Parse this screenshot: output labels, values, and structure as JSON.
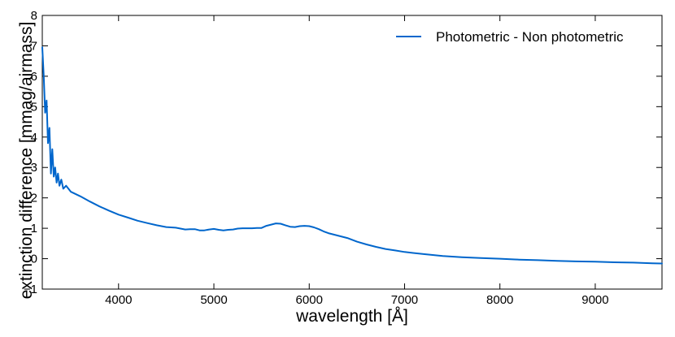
{
  "chart_data": {
    "type": "line",
    "title": "",
    "xlabel": "wavelength [Å]",
    "ylabel": "extinction difference [mmag/airmass]",
    "xlim": [
      3200,
      9700
    ],
    "ylim": [
      -1,
      8
    ],
    "x_ticks": [
      4000,
      5000,
      6000,
      7000,
      8000,
      9000
    ],
    "y_ticks": [
      -1,
      0,
      1,
      2,
      3,
      4,
      5,
      6,
      7,
      8
    ],
    "grid": false,
    "legend_position": "top-right",
    "series": [
      {
        "name": "Photometric - Non photometric",
        "color": "#0066cc",
        "x": [
          3200,
          3215,
          3230,
          3245,
          3260,
          3275,
          3290,
          3305,
          3320,
          3335,
          3350,
          3365,
          3380,
          3400,
          3420,
          3450,
          3500,
          3600,
          3700,
          3800,
          3900,
          4000,
          4100,
          4200,
          4300,
          4400,
          4500,
          4600,
          4700,
          4750,
          4800,
          4850,
          4900,
          4950,
          5000,
          5050,
          5100,
          5150,
          5200,
          5250,
          5300,
          5350,
          5400,
          5450,
          5500,
          5550,
          5600,
          5650,
          5700,
          5750,
          5800,
          5850,
          5900,
          5950,
          6000,
          6050,
          6100,
          6150,
          6200,
          6300,
          6400,
          6450,
          6500,
          6600,
          6700,
          6800,
          6900,
          7000,
          7200,
          7400,
          7600,
          7800,
          8000,
          8200,
          8400,
          8600,
          8800,
          9000,
          9200,
          9400,
          9600,
          9700
        ],
        "y": [
          6.95,
          6.0,
          4.8,
          5.2,
          3.8,
          4.3,
          2.8,
          3.6,
          2.7,
          3.0,
          2.5,
          2.8,
          2.4,
          2.6,
          2.3,
          2.4,
          2.2,
          2.05,
          1.88,
          1.72,
          1.58,
          1.45,
          1.35,
          1.25,
          1.17,
          1.1,
          1.04,
          1.02,
          0.96,
          0.97,
          0.97,
          0.93,
          0.93,
          0.96,
          0.98,
          0.95,
          0.93,
          0.95,
          0.96,
          0.99,
          1.0,
          1.0,
          1.0,
          1.01,
          1.01,
          1.08,
          1.12,
          1.16,
          1.15,
          1.1,
          1.05,
          1.04,
          1.07,
          1.08,
          1.07,
          1.03,
          0.97,
          0.9,
          0.84,
          0.76,
          0.68,
          0.62,
          0.56,
          0.47,
          0.39,
          0.32,
          0.27,
          0.22,
          0.15,
          0.09,
          0.05,
          0.02,
          0.0,
          -0.03,
          -0.05,
          -0.07,
          -0.09,
          -0.1,
          -0.12,
          -0.13,
          -0.15,
          -0.16
        ]
      }
    ]
  }
}
